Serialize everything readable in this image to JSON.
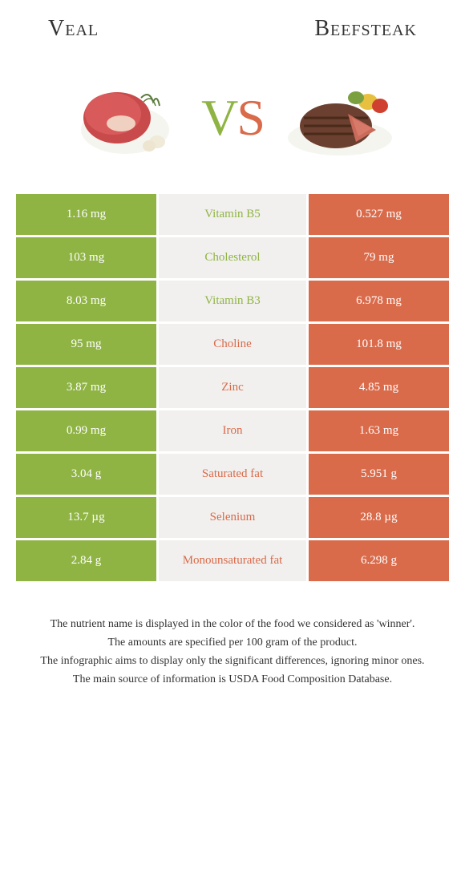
{
  "header": {
    "left_title": "Veal",
    "right_title": "Beefsteak"
  },
  "vs": {
    "v": "V",
    "s": "S"
  },
  "colors": {
    "left": "#8fb444",
    "right": "#d96a4a",
    "mid_bg": "#f1f0ee"
  },
  "rows": [
    {
      "left": "1.16 mg",
      "label": "Vitamin B5",
      "right": "0.527 mg",
      "winner": "left"
    },
    {
      "left": "103 mg",
      "label": "Cholesterol",
      "right": "79 mg",
      "winner": "left"
    },
    {
      "left": "8.03 mg",
      "label": "Vitamin B3",
      "right": "6.978 mg",
      "winner": "left"
    },
    {
      "left": "95 mg",
      "label": "Choline",
      "right": "101.8 mg",
      "winner": "right"
    },
    {
      "left": "3.87 mg",
      "label": "Zinc",
      "right": "4.85 mg",
      "winner": "right"
    },
    {
      "left": "0.99 mg",
      "label": "Iron",
      "right": "1.63 mg",
      "winner": "right"
    },
    {
      "left": "3.04 g",
      "label": "Saturated fat",
      "right": "5.951 g",
      "winner": "right"
    },
    {
      "left": "13.7 µg",
      "label": "Selenium",
      "right": "28.8 µg",
      "winner": "right"
    },
    {
      "left": "2.84 g",
      "label": "Monounsaturated fat",
      "right": "6.298 g",
      "winner": "right"
    }
  ],
  "footer": {
    "line1": "The nutrient name is displayed in the color of the food we considered as 'winner'.",
    "line2": "The amounts are specified per 100 gram of the product.",
    "line3": "The infographic aims to display only the significant differences, ignoring minor ones.",
    "line4": "The main source of information is USDA Food Composition Database."
  }
}
